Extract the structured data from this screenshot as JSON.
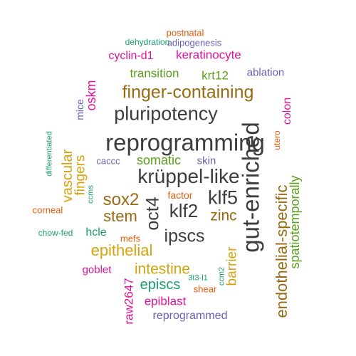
{
  "words": [
    {
      "text": "reprogramming",
      "color": "#3d3d3d"
    },
    {
      "text": "gut-enriched",
      "color": "#3d3d3d"
    },
    {
      "text": "pluripotency",
      "color": "#3d3d3d"
    },
    {
      "text": "krüppel-like",
      "color": "#3d3d3d"
    },
    {
      "text": "finger-containing",
      "color": "#9a6a12"
    },
    {
      "text": "endothelial-specific",
      "color": "#9a6a12"
    },
    {
      "text": "oct4",
      "color": "#3d3d3d"
    },
    {
      "text": "klf5",
      "color": "#3d3d3d"
    },
    {
      "text": "klf2",
      "color": "#3d3d3d"
    },
    {
      "text": "ipscs",
      "color": "#3d3d3d"
    },
    {
      "text": "sox2",
      "color": "#9a6a12"
    },
    {
      "text": "stem",
      "color": "#9a6a12"
    },
    {
      "text": "zinc",
      "color": "#9a6a12"
    },
    {
      "text": "epithelial",
      "color": "#d6a30c"
    },
    {
      "text": "intestine",
      "color": "#d6a30c"
    },
    {
      "text": "spatiotemporally",
      "color": "#5a9e1a"
    },
    {
      "text": "vascular",
      "color": "#d6a30c"
    },
    {
      "text": "barrier",
      "color": "#d6a30c"
    },
    {
      "text": "episcs",
      "color": "#1a9e72"
    },
    {
      "text": "fingers",
      "color": "#d6a30c"
    },
    {
      "text": "oskm",
      "color": "#e0139c"
    },
    {
      "text": "somatic",
      "color": "#5a9e1a"
    },
    {
      "text": "transition",
      "color": "#5a9e1a"
    },
    {
      "text": "keratinocyte",
      "color": "#e0139c"
    },
    {
      "text": "cyclin-d1",
      "color": "#e0139c"
    },
    {
      "text": "krt12",
      "color": "#5a9e1a"
    },
    {
      "text": "colon",
      "color": "#e0139c"
    },
    {
      "text": "raw2647",
      "color": "#e0139c"
    },
    {
      "text": "epiblast",
      "color": "#e0139c"
    },
    {
      "text": "hcle",
      "color": "#1a9e72"
    },
    {
      "text": "reprogrammed",
      "color": "#6a5fb5"
    },
    {
      "text": "goblet",
      "color": "#e0139c"
    },
    {
      "text": "ablation",
      "color": "#6a5fb5"
    },
    {
      "text": "skin",
      "color": "#6a5fb5"
    },
    {
      "text": "utero",
      "color": "#e05a0c"
    },
    {
      "text": "factor",
      "color": "#e05a0c"
    },
    {
      "text": "mefs",
      "color": "#e05a0c"
    },
    {
      "text": "mice",
      "color": "#6a5fb5"
    },
    {
      "text": "corneal",
      "color": "#e05a0c"
    },
    {
      "text": "caccc",
      "color": "#6a5fb5"
    },
    {
      "text": "postnatal",
      "color": "#e05a0c"
    },
    {
      "text": "adipogenesis",
      "color": "#6a5fb5"
    },
    {
      "text": "chow-fed",
      "color": "#1a9e72"
    },
    {
      "text": "shear",
      "color": "#e05a0c"
    },
    {
      "text": "dehydration",
      "color": "#1a9e72"
    },
    {
      "text": "differentiated",
      "color": "#1a9e72"
    },
    {
      "text": "ccms",
      "color": "#1a9e72"
    },
    {
      "text": "ccm2",
      "color": "#1a9e72"
    },
    {
      "text": "3t3-l1",
      "color": "#1a9e72"
    }
  ]
}
